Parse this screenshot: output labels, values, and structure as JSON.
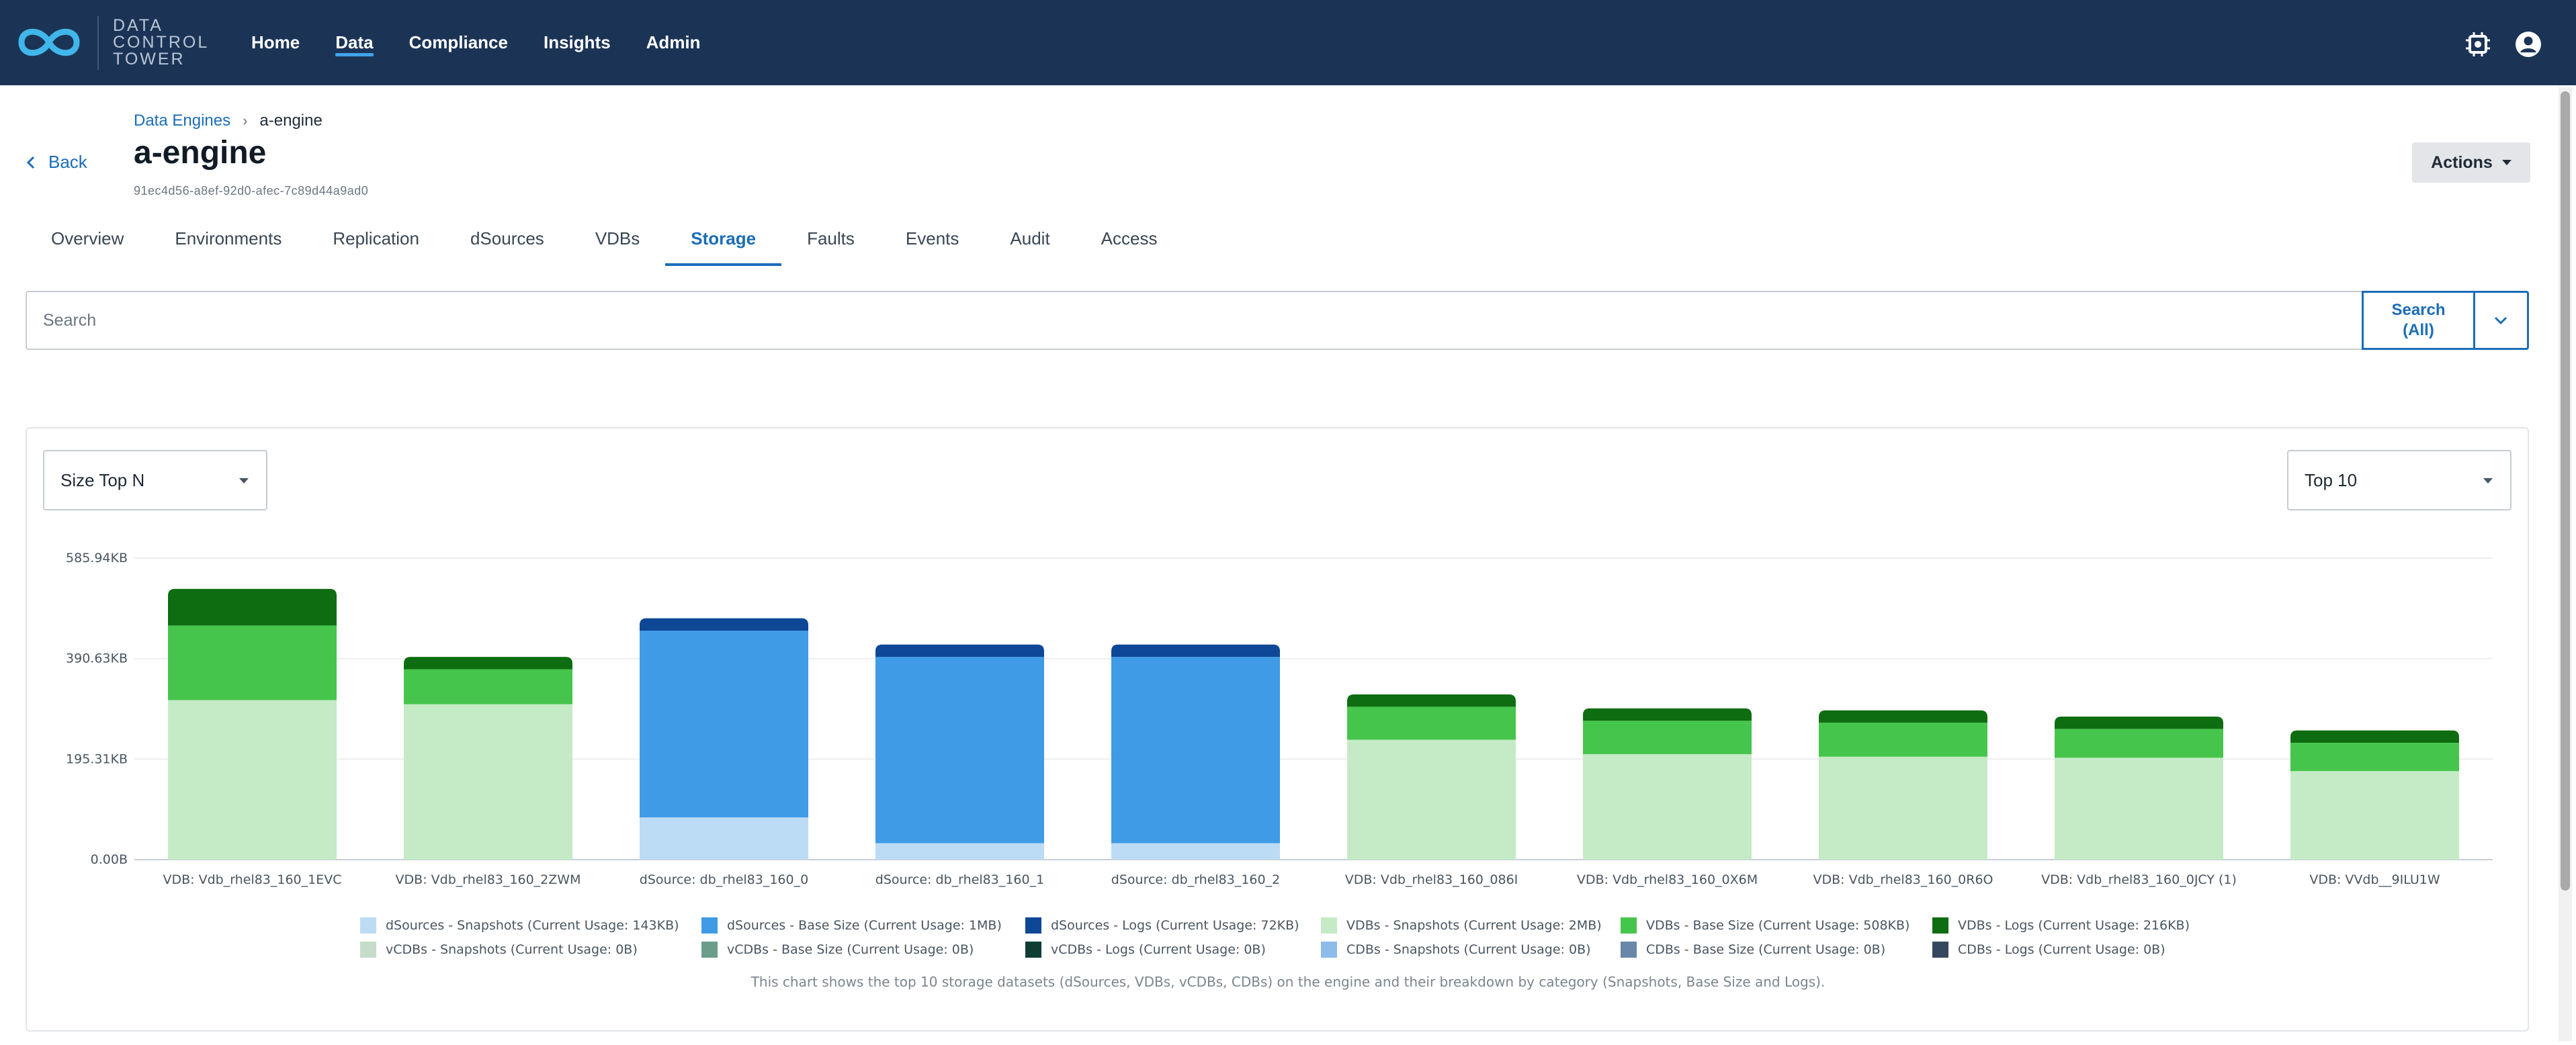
{
  "brand": {
    "lines": [
      "DATA",
      "CONTROL",
      "TOWER"
    ],
    "color": "#1b3456"
  },
  "nav": [
    {
      "label": "Home",
      "active": false
    },
    {
      "label": "Data",
      "active": true
    },
    {
      "label": "Compliance",
      "active": false
    },
    {
      "label": "Insights",
      "active": false
    },
    {
      "label": "Admin",
      "active": false
    }
  ],
  "top_icons": [
    "chip-settings-icon",
    "account-circle-icon"
  ],
  "breadcrumb": {
    "parent": "Data Engines",
    "current": "a-engine"
  },
  "back_label": "Back",
  "page_title": "a-engine",
  "engine_id": "91ec4d56-a8ef-92d0-afec-7c89d44a9ad0",
  "actions_label": "Actions",
  "tabs": [
    {
      "label": "Overview",
      "active": false
    },
    {
      "label": "Environments",
      "active": false
    },
    {
      "label": "Replication",
      "active": false
    },
    {
      "label": "dSources",
      "active": false
    },
    {
      "label": "VDBs",
      "active": false
    },
    {
      "label": "Storage",
      "active": true
    },
    {
      "label": "Faults",
      "active": false
    },
    {
      "label": "Events",
      "active": false
    },
    {
      "label": "Audit",
      "active": false
    },
    {
      "label": "Access",
      "active": false
    }
  ],
  "search": {
    "placeholder": "Search",
    "button_line1": "Search",
    "button_line2": "(All)"
  },
  "filters": {
    "metric": "Size Top N",
    "count": "Top 10"
  },
  "chart_data": {
    "type": "bar",
    "stacked": true,
    "y_ticks": [
      "0.00B",
      "195.31KB",
      "390.63KB",
      "585.94KB"
    ],
    "ylim": [
      0,
      585.94
    ],
    "y_unit": "KB",
    "grid": true,
    "legend_position": "bottom",
    "categories": [
      "VDB: Vdb_rhel83_160_1EVC",
      "VDB: Vdb_rhel83_160_2ZWM",
      "dSource: db_rhel83_160_0",
      "dSource: db_rhel83_160_1",
      "dSource: db_rhel83_160_2",
      "VDB: Vdb_rhel83_160_086I",
      "VDB: Vdb_rhel83_160_0X6M",
      "VDB: Vdb_rhel83_160_0R6O",
      "VDB: Vdb_rhel83_160_0JCY (1)",
      "VDB: VVdb__9ILU1W"
    ],
    "series": [
      {
        "name": "dSources - Snapshots (Current Usage: 143KB)",
        "color": "#bcdcf5",
        "values": [
          0,
          0,
          82,
          32,
          32,
          0,
          0,
          0,
          0,
          0
        ]
      },
      {
        "name": "dSources - Base Size (Current Usage: 1MB)",
        "color": "#3f9be5",
        "values": [
          0,
          0,
          363,
          362,
          362,
          0,
          0,
          0,
          0,
          0
        ]
      },
      {
        "name": "dSources - Logs (Current Usage: 72KB)",
        "color": "#0e4795",
        "values": [
          0,
          0,
          24,
          24,
          24,
          0,
          0,
          0,
          0,
          0
        ]
      },
      {
        "name": "VDBs - Snapshots (Current Usage: 2MB)",
        "color": "#c4ebc6",
        "values": [
          310,
          302,
          0,
          0,
          0,
          233,
          205,
          200,
          198,
          172
        ]
      },
      {
        "name": "VDBs - Base Size (Current Usage: 508KB)",
        "color": "#46c54d",
        "values": [
          145,
          68,
          0,
          0,
          0,
          64,
          65,
          66,
          56,
          55
        ]
      },
      {
        "name": "VDBs - Logs (Current Usage: 216KB)",
        "color": "#0d6d10",
        "values": [
          71,
          24,
          0,
          0,
          0,
          24,
          24,
          24,
          24,
          24
        ]
      },
      {
        "name": "vCDBs - Snapshots (Current Usage: 0B)",
        "color": "#c4dcc9",
        "values": [
          0,
          0,
          0,
          0,
          0,
          0,
          0,
          0,
          0,
          0
        ]
      },
      {
        "name": "vCDBs - Base Size (Current Usage: 0B)",
        "color": "#6b9e8a",
        "values": [
          0,
          0,
          0,
          0,
          0,
          0,
          0,
          0,
          0,
          0
        ]
      },
      {
        "name": "vCDBs - Logs (Current Usage: 0B)",
        "color": "#0f3d34",
        "values": [
          0,
          0,
          0,
          0,
          0,
          0,
          0,
          0,
          0,
          0
        ]
      },
      {
        "name": "CDBs - Snapshots (Current Usage: 0B)",
        "color": "#8dbbea",
        "values": [
          0,
          0,
          0,
          0,
          0,
          0,
          0,
          0,
          0,
          0
        ]
      },
      {
        "name": "CDBs - Base Size (Current Usage: 0B)",
        "color": "#6a86a8",
        "values": [
          0,
          0,
          0,
          0,
          0,
          0,
          0,
          0,
          0,
          0
        ]
      },
      {
        "name": "CDBs - Logs (Current Usage: 0B)",
        "color": "#34475e",
        "values": [
          0,
          0,
          0,
          0,
          0,
          0,
          0,
          0,
          0,
          0
        ]
      }
    ],
    "caption": "This chart shows the top 10 storage datasets (dSources, VDBs, vCDBs, CDBs) on the engine and their breakdown by category (Snapshots, Base Size and Logs)."
  }
}
